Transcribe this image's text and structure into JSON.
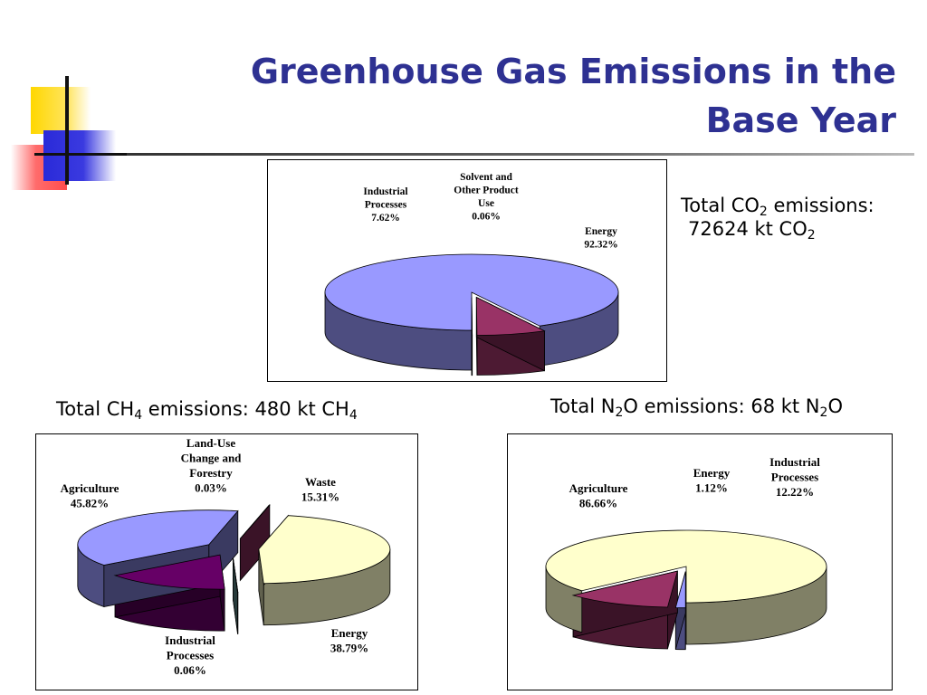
{
  "slide": {
    "title_line1": "Greenhouse Gas Emissions in the",
    "title_line2": "Base Year"
  },
  "captions": {
    "co2": {
      "l1a": "Total CO",
      "l1sub": "2",
      "l1b": " emissions:",
      "l2a": "72624 kt CO",
      "l2sub": "2"
    },
    "ch4": {
      "a": "Total CH",
      "sub1": "4",
      "b": " emissions: 480 kt CH",
      "sub2": "4"
    },
    "n2o": {
      "a": "Total N",
      "sub1": "2",
      "b": "O emissions: 68 kt N",
      "sub2": "2",
      "c": "O"
    }
  },
  "colors": {
    "title": "#2e3192",
    "energy": "#9999ff",
    "industrial": "#993366",
    "solvent": "#ffffcc",
    "agriculture": "#ffffcc",
    "waste": "#660066",
    "lulucf": "#669999"
  },
  "chart_data": [
    {
      "type": "pie",
      "gas": "CO2",
      "slices": [
        {
          "label": "Energy",
          "value": 92.32,
          "value_text": "92.32%",
          "color": "#9999ff",
          "label_lines": [
            "Energy",
            "92.32%"
          ]
        },
        {
          "label": "Industrial Processes",
          "value": 7.62,
          "value_text": "7.62%",
          "color": "#993366",
          "label_lines": [
            "Industrial",
            "Processes",
            "7.62%"
          ]
        },
        {
          "label": "Solvent and Other Product Use",
          "value": 0.06,
          "value_text": "0.06%",
          "color": "#ffffcc",
          "label_lines": [
            "Solvent and",
            "Other Product",
            "Use",
            "0.06%"
          ]
        }
      ]
    },
    {
      "type": "pie",
      "gas": "CH4",
      "slices": [
        {
          "label": "Waste",
          "value": 15.31,
          "value_text": "15.31%",
          "color": "#660066",
          "label_lines": [
            "Waste",
            "15.31%"
          ]
        },
        {
          "label": "Energy",
          "value": 38.79,
          "value_text": "38.79%",
          "color": "#9999ff",
          "label_lines": [
            "Energy",
            "38.79%"
          ]
        },
        {
          "label": "Industrial Processes",
          "value": 0.06,
          "value_text": "0.06%",
          "color": "#993366",
          "label_lines": [
            "Industrial",
            "Processes",
            "0.06%"
          ]
        },
        {
          "label": "Agriculture",
          "value": 45.82,
          "value_text": "45.82%",
          "color": "#ffffcc",
          "label_lines": [
            "Agriculture",
            "45.82%"
          ]
        },
        {
          "label": "Land-Use Change and Forestry",
          "value": 0.03,
          "value_text": "0.03%",
          "color": "#669999",
          "label_lines": [
            "Land-Use",
            "Change and",
            "Forestry",
            "0.03%"
          ]
        }
      ]
    },
    {
      "type": "pie",
      "gas": "N2O",
      "slices": [
        {
          "label": "Energy",
          "value": 1.12,
          "value_text": "1.12%",
          "color": "#9999ff",
          "label_lines": [
            "Energy",
            "1.12%"
          ]
        },
        {
          "label": "Industrial Processes",
          "value": 12.22,
          "value_text": "12.22%",
          "color": "#993366",
          "label_lines": [
            "Industrial",
            "Processes",
            "12.22%"
          ]
        },
        {
          "label": "Agriculture",
          "value": 86.66,
          "value_text": "86.66%",
          "color": "#ffffcc",
          "label_lines": [
            "Agriculture",
            "86.66%"
          ]
        }
      ]
    }
  ]
}
